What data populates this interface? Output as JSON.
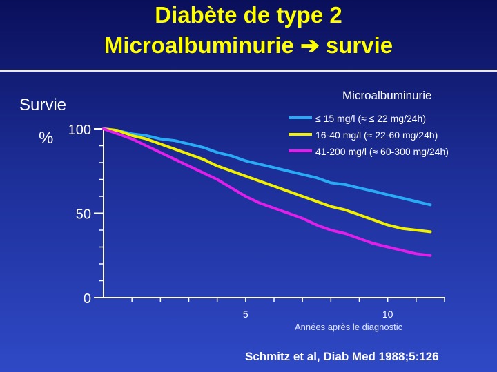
{
  "title_line1": "Diabète de type 2",
  "title_line2": "Microalbuminurie",
  "title_arrow": "➔",
  "title_line2_end": "survie",
  "colors": {
    "title": "#ffff00",
    "text": "#ffffff",
    "axis": "#ffffff"
  },
  "chart_data": {
    "type": "line",
    "title": "",
    "ylabel": "Survie",
    "yunit": "%",
    "xlabel": "Années après le diagnostic",
    "xlim": [
      0,
      12
    ],
    "ylim": [
      0,
      100
    ],
    "yticks": [
      0,
      50,
      100
    ],
    "xticks": [
      5,
      10
    ],
    "legend_title": "Microalbuminurie",
    "legend_position": "top-right",
    "series": [
      {
        "name": "≤ 15 mg/l (≈ ≤ 22 mg/24h)",
        "color": "#29aaf4",
        "x": [
          0,
          0.5,
          1,
          1.5,
          2,
          2.5,
          3,
          3.5,
          4,
          4.5,
          5,
          5.5,
          6,
          6.5,
          7,
          7.5,
          8,
          8.5,
          9,
          9.5,
          10,
          10.5,
          11,
          11.5
        ],
        "y": [
          100,
          99,
          97,
          96,
          94,
          93,
          91,
          89,
          86,
          84,
          81,
          79,
          77,
          75,
          73,
          71,
          68,
          67,
          65,
          63,
          61,
          59,
          57,
          55
        ]
      },
      {
        "name": "16-40 mg/l (≈ 22-60 mg/24h)",
        "color": "#f0f000",
        "x": [
          0,
          0.5,
          1,
          1.5,
          2,
          2.5,
          3,
          3.5,
          4,
          4.5,
          5,
          5.5,
          6,
          6.5,
          7,
          7.5,
          8,
          8.5,
          9,
          9.5,
          10,
          10.5,
          11,
          11.5
        ],
        "y": [
          100,
          99,
          96,
          94,
          91,
          88,
          85,
          82,
          78,
          75,
          72,
          69,
          66,
          63,
          60,
          57,
          54,
          52,
          49,
          46,
          43,
          41,
          40,
          39
        ]
      },
      {
        "name": "41-200 mg/l (≈ 60-300 mg/24h)",
        "color": "#e020e8",
        "x": [
          0,
          0.5,
          1,
          1.5,
          2,
          2.5,
          3,
          3.5,
          4,
          4.5,
          5,
          5.5,
          6,
          6.5,
          7,
          7.5,
          8,
          8.5,
          9,
          9.5,
          10,
          10.5,
          11,
          11.5
        ],
        "y": [
          100,
          97,
          94,
          90,
          86,
          82,
          78,
          74,
          70,
          65,
          60,
          56,
          53,
          50,
          47,
          43,
          40,
          38,
          35,
          32,
          30,
          28,
          26,
          25
        ]
      }
    ]
  },
  "citation": "Schmitz et al,  Diab Med 1988;5:126"
}
